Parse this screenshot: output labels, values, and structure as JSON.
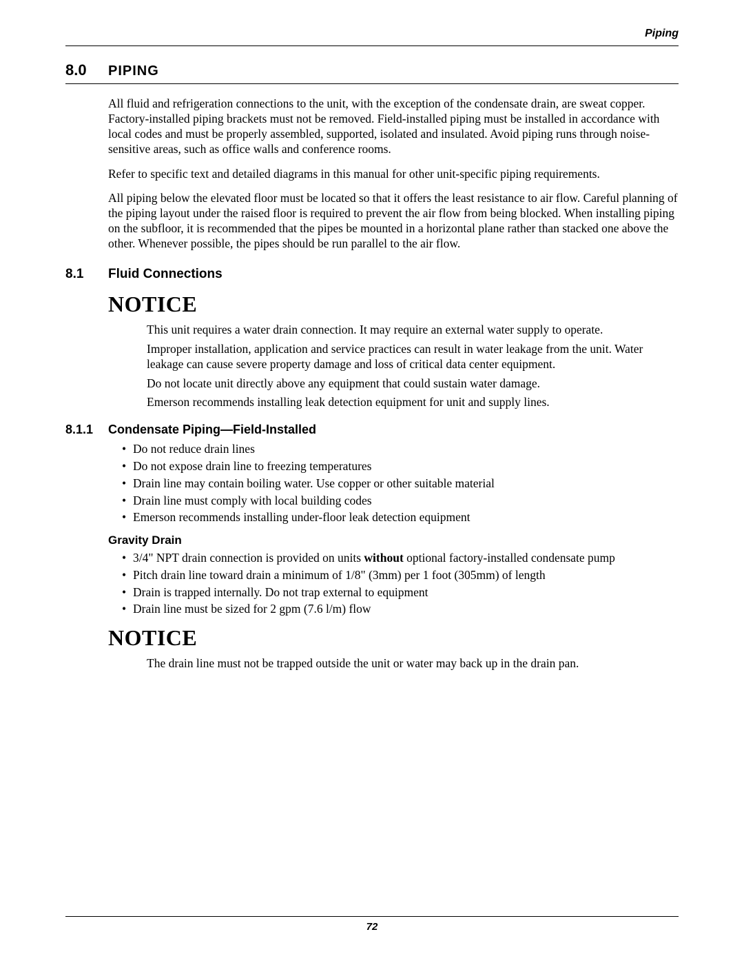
{
  "running_head": "Piping",
  "section": {
    "number": "8.0",
    "title": "PIPING"
  },
  "intro_paragraphs": [
    "All fluid and refrigeration connections to the unit, with the exception of the condensate drain, are sweat copper. Factory-installed piping brackets must not be removed. Field-installed piping must be installed in accordance with local codes and must be properly assembled, supported, isolated and insulated. Avoid piping runs through noise-sensitive areas, such as office walls and conference rooms.",
    "Refer to specific text and detailed diagrams in this manual for other unit-specific piping requirements.",
    "All piping below the elevated floor must be located so that it offers the least resistance to air flow. Careful planning of the piping layout under the raised floor is required to prevent the air flow from being blocked. When installing piping on the subfloor, it is recommended that the pipes be mounted in a horizontal plane rather than stacked one above the other. Whenever possible, the pipes should be run parallel to the air flow."
  ],
  "subsection": {
    "number": "8.1",
    "title": "Fluid Connections"
  },
  "notice1": {
    "heading": "NOTICE",
    "paragraphs": [
      "This unit requires a water drain connection. It may require an external water supply to operate.",
      "Improper installation, application and service practices can result in water leakage from the unit. Water leakage can cause severe property damage and loss of critical data center equipment.",
      "Do not locate unit directly above any equipment that could sustain water damage.",
      "Emerson recommends installing leak detection equipment for unit and supply lines."
    ]
  },
  "subsubsection": {
    "number": "8.1.1",
    "title": "Condensate Piping—Field-Installed"
  },
  "bullets1": [
    "Do not reduce drain lines",
    "Do not expose drain line to freezing temperatures",
    "Drain line may contain boiling water. Use copper or other suitable material",
    "Drain line must comply with local building codes",
    "Emerson recommends installing under-floor leak detection equipment"
  ],
  "gravity": {
    "title": "Gravity Drain",
    "bullets_pre": "3/4\" NPT drain connection is provided on units ",
    "bullets_bold": "without",
    "bullets_post": " optional factory-installed condensate pump",
    "rest": [
      "Pitch drain line toward drain a minimum of 1/8\" (3mm) per 1 foot (305mm) of length",
      "Drain is trapped internally. Do not trap external to equipment",
      "Drain line must be sized for 2 gpm (7.6 l/m) flow"
    ]
  },
  "notice2": {
    "heading": "NOTICE",
    "paragraphs": [
      "The drain line must not be trapped outside the unit or water may back up in the drain pan."
    ]
  },
  "page_number": "72"
}
